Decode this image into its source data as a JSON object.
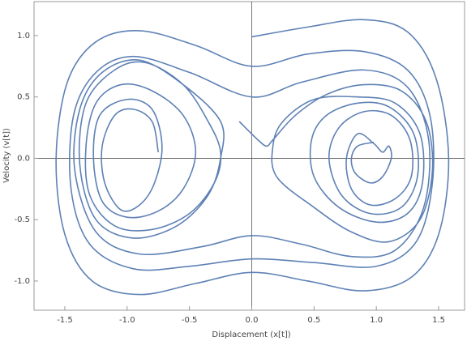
{
  "chart_data": {
    "type": "line",
    "x_label": "Displacement (x[t])",
    "y_label": "Velocity (v[t])",
    "color": "#5e81b5",
    "xlim": [
      -1.747,
      1.708
    ],
    "ylim": [
      -1.238,
      1.277
    ],
    "xticks": [
      -1.5,
      {
        "value": -1,
        "label": "-1.0"
      },
      -0.5,
      {
        "value": 0,
        "label": "0.0"
      },
      0.5,
      {
        "value": 1,
        "label": "1.0"
      },
      1.5
    ],
    "yticks": [
      {
        "value": -1,
        "label": "-1.0"
      },
      -0.5,
      {
        "value": 0,
        "label": "0.0"
      },
      0.5,
      {
        "value": 1,
        "label": "1.0"
      }
    ],
    "x": [
      0,
      0.45,
      0.9,
      1.25,
      1.48,
      1.58,
      1.5,
      1.28,
      0.9,
      0.45,
      0,
      -0.45,
      -0.9,
      -1.28,
      -1.5,
      -1.57,
      -1.48,
      -1.25,
      -0.9,
      -0.45,
      0,
      0.45,
      0.9,
      1.25,
      1.43,
      1.45,
      1.32,
      1.0,
      0.5,
      0,
      -0.5,
      -0.95,
      -1.3,
      -1.45,
      -1.43,
      -1.25,
      -0.95,
      -0.5,
      0,
      0.4,
      0.9,
      1.25,
      1.42,
      1.38,
      1.15,
      0.8,
      0.4,
      0,
      -0.4,
      -0.9,
      -1.25,
      -1.42,
      -1.38,
      -1.2,
      -0.9,
      -0.55,
      -0.25,
      -0.25,
      -0.35,
      -0.6,
      -0.95,
      -1.25,
      -1.38,
      -1.33,
      -1.1,
      -0.85,
      -0.55,
      -0.35,
      -0.25,
      -0.3,
      -0.5,
      -0.8,
      -1.1,
      -1.3,
      -1.33,
      -1.25,
      -1.05,
      -0.8,
      -0.55,
      -0.45,
      -0.55,
      -0.75,
      -1.0,
      -1.2,
      -1.27,
      -1.22,
      -1.0,
      -0.8,
      -0.72,
      -0.78,
      -0.9,
      -1.05,
      -1.18,
      -1.2,
      -1.1,
      -0.95,
      -0.8,
      -0.75,
      null,
      -0.1,
      0.05,
      0.12,
      0.17,
      0.35,
      0.6,
      0.9,
      1.2,
      1.4,
      1.45,
      1.35,
      1.1,
      0.8,
      0.5,
      0.2,
      0.17,
      0.25,
      0.5,
      0.85,
      1.15,
      1.35,
      1.37,
      1.25,
      1.0,
      0.7,
      0.5,
      0.48,
      0.6,
      0.85,
      1.1,
      1.3,
      1.33,
      1.2,
      0.95,
      0.72,
      0.62,
      0.7,
      0.9,
      1.12,
      1.27,
      1.28,
      1.15,
      0.95,
      0.8,
      0.76,
      0.85,
      0.98,
      1.05,
      1.1,
      1.12,
      1.05,
      0.95,
      0.83,
      0.8,
      0.85,
      0.98
    ],
    "values": [
      0.99,
      1.07,
      1.13,
      1.03,
      0.65,
      0,
      -0.62,
      -0.97,
      -1.08,
      -1.0,
      -0.93,
      -1.02,
      -1.11,
      -1.0,
      -0.62,
      0,
      0.62,
      0.95,
      1.04,
      0.92,
      0.75,
      0.85,
      0.87,
      0.72,
      0.35,
      -0.2,
      -0.68,
      -0.88,
      -0.85,
      -0.82,
      -0.88,
      -0.9,
      -0.7,
      -0.25,
      0.35,
      0.7,
      0.83,
      0.7,
      0.5,
      0.62,
      0.72,
      0.58,
      0.15,
      -0.4,
      -0.75,
      -0.8,
      -0.7,
      -0.63,
      -0.72,
      -0.78,
      -0.6,
      -0.1,
      0.4,
      0.7,
      0.8,
      0.6,
      0.3,
      0.0,
      -0.3,
      -0.55,
      -0.65,
      -0.5,
      -0.05,
      0.45,
      0.72,
      0.78,
      0.6,
      0.3,
      0.05,
      -0.2,
      -0.45,
      -0.58,
      -0.55,
      -0.3,
      0.1,
      0.45,
      0.6,
      0.55,
      0.35,
      0.05,
      -0.25,
      -0.43,
      -0.48,
      -0.35,
      0,
      0.35,
      0.48,
      0.4,
      0.1,
      -0.2,
      -0.38,
      -0.42,
      -0.2,
      0.1,
      0.35,
      0.4,
      0.3,
      0.05,
      null,
      0.3,
      0.15,
      0.1,
      0.15,
      0.35,
      0.52,
      0.6,
      0.55,
      0.3,
      -0.1,
      -0.5,
      -0.68,
      -0.6,
      -0.4,
      -0.15,
      0.1,
      0.3,
      0.48,
      0.5,
      0.45,
      0.2,
      -0.2,
      -0.45,
      -0.52,
      -0.4,
      -0.15,
      0.15,
      0.35,
      0.45,
      0.42,
      0.2,
      -0.15,
      -0.4,
      -0.45,
      -0.3,
      0,
      0.25,
      0.38,
      0.35,
      0.15,
      -0.15,
      -0.33,
      -0.38,
      -0.25,
      0,
      0.2,
      0.12,
      0.05,
      0.1,
      0,
      -0.15,
      -0.2,
      -0.12,
      0,
      0.1,
      0.13
    ]
  }
}
